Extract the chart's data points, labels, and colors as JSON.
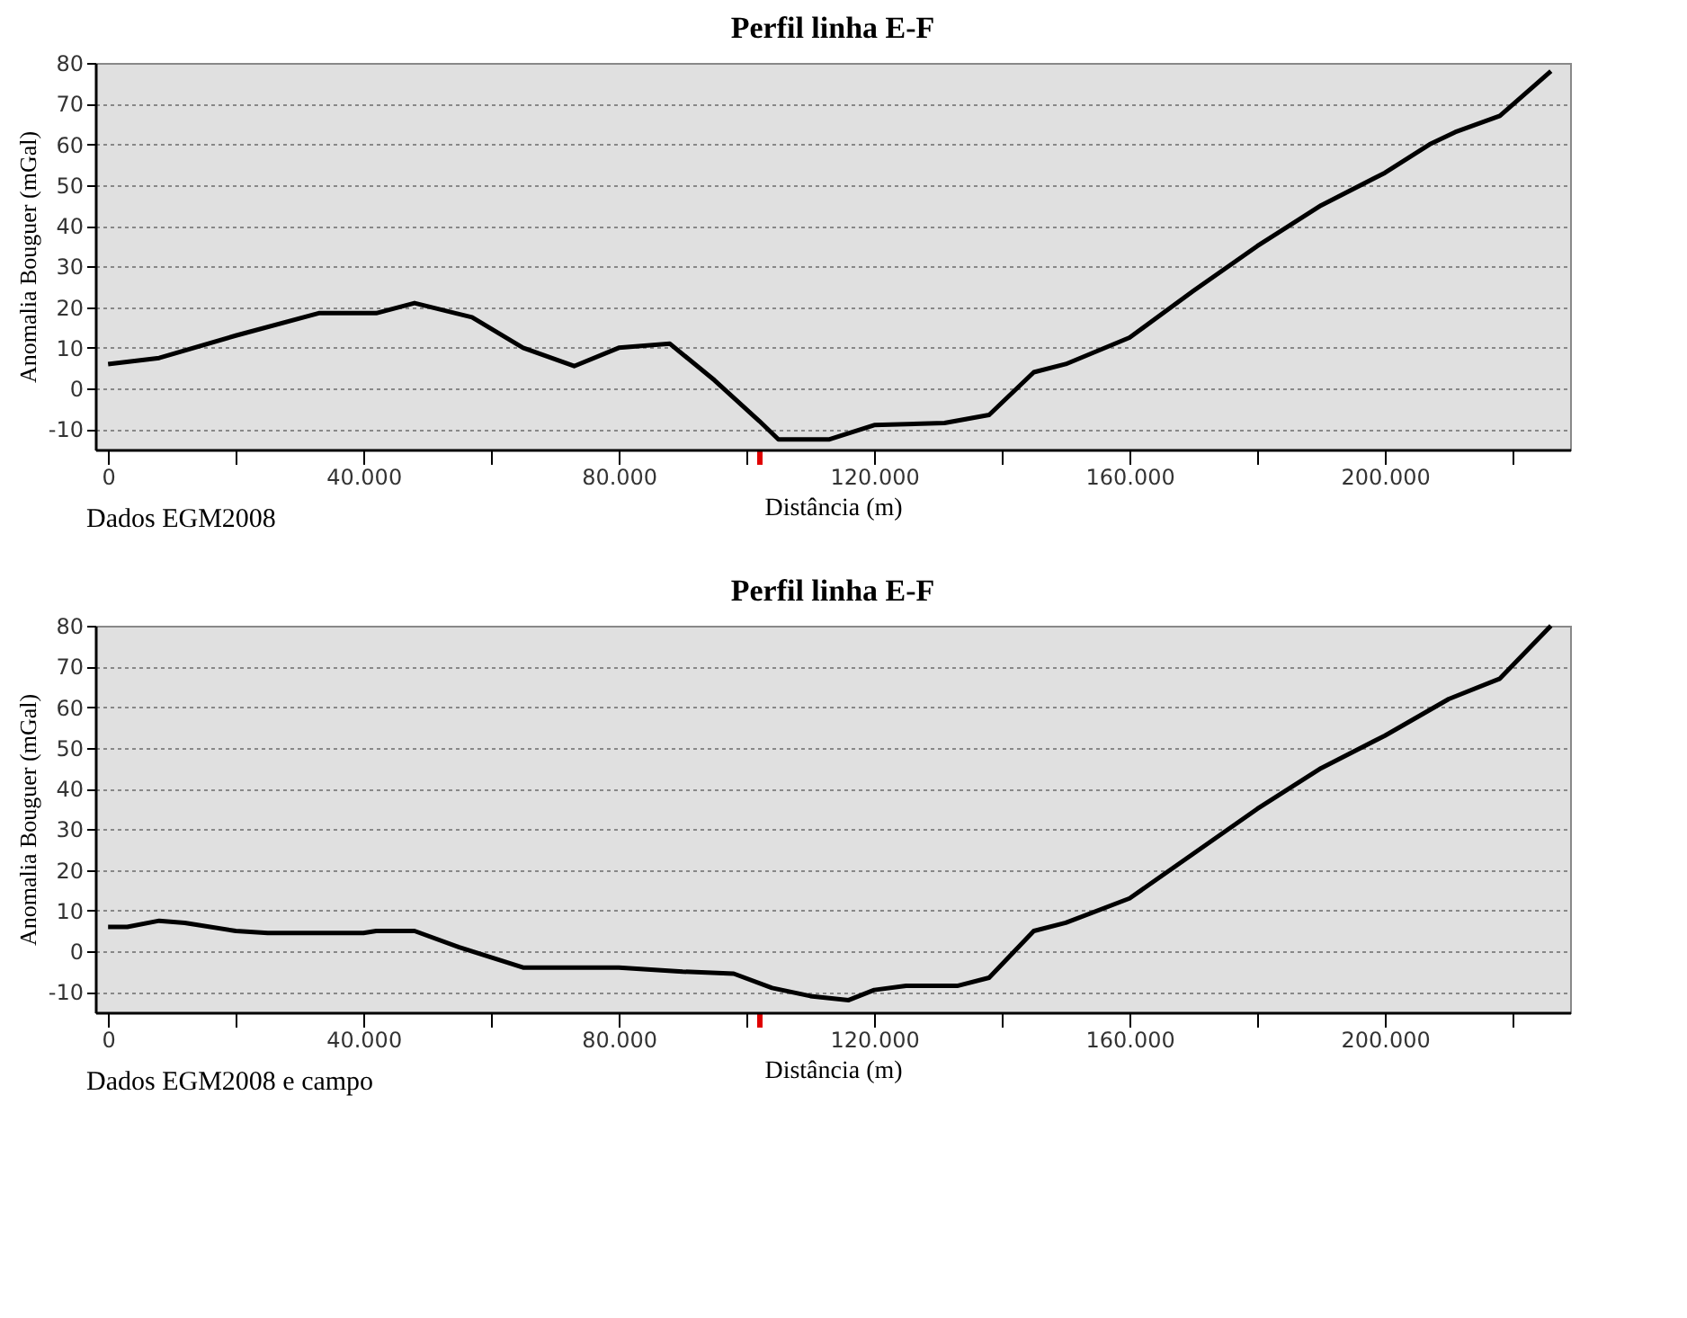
{
  "chart_data": [
    {
      "type": "line",
      "title": "Perfil linha E-F",
      "xlabel": "Distância (m)",
      "ylabel": "Anomalia Bouguer (mGal)",
      "annotations": [
        "Dados EGM2008"
      ],
      "series": [
        {
          "color": "#000000",
          "x": [
            0,
            8000,
            20000,
            33000,
            42000,
            48000,
            57000,
            65000,
            73000,
            80000,
            88000,
            95000,
            102000,
            105000,
            113000,
            120000,
            131000,
            138000,
            145000,
            150000,
            160000,
            170000,
            180000,
            190000,
            200000,
            207000,
            211000,
            218000,
            226000
          ],
          "values": [
            6,
            7.5,
            13,
            18.5,
            18.5,
            21,
            17.5,
            10,
            5.5,
            10,
            11,
            2,
            -8,
            -12.5,
            -12.5,
            -9,
            -8.5,
            -6.5,
            4,
            6,
            12.5,
            24,
            35,
            45,
            53,
            60,
            63,
            67,
            78
          ]
        }
      ],
      "xlim": [
        -2000,
        229000
      ],
      "ylim": [
        -15,
        80
      ],
      "xticks": [
        0,
        {
          "value": 20000,
          "label": null
        },
        {
          "value": 40000,
          "label": "40.000"
        },
        {
          "value": 60000,
          "label": null
        },
        {
          "value": 80000,
          "label": "80.000"
        },
        {
          "value": 100000,
          "label": null
        },
        {
          "value": 102000,
          "label": null
        },
        {
          "value": 120000,
          "label": "120.000"
        },
        {
          "value": 140000,
          "label": null
        },
        {
          "value": 160000,
          "label": "160.000"
        },
        {
          "value": 180000,
          "label": null
        },
        {
          "value": 200000,
          "label": "200.000"
        },
        {
          "value": 220000,
          "label": null
        }
      ],
      "yticks": [
        -10,
        0,
        10,
        20,
        30,
        40,
        50,
        60,
        70,
        80
      ],
      "grid": "y",
      "line_style": "solid"
    },
    {
      "type": "line",
      "title": "Perfil linha E-F",
      "xlabel": "Distância (m)",
      "ylabel": "Anomalia Bouguer (mGal)",
      "annotations": [
        "Dados EGM2008 e campo"
      ],
      "series": [
        {
          "color": "#000000",
          "x": [
            0,
            3000,
            8000,
            12000,
            20000,
            25000,
            40000,
            42000,
            48000,
            55000,
            65000,
            80000,
            90000,
            98000,
            104000,
            110000,
            116000,
            120000,
            125000,
            133000,
            138000,
            145000,
            150000,
            160000,
            170000,
            180000,
            190000,
            200000,
            210000,
            218000,
            226000
          ],
          "values": [
            6,
            6,
            7.5,
            7,
            5,
            4.5,
            4.5,
            5,
            5,
            1,
            -4,
            -4,
            -5,
            -5.5,
            -9,
            -11,
            -12,
            -9.5,
            -8.5,
            -8.5,
            -6.5,
            5,
            7,
            13,
            24,
            35,
            45,
            53,
            62,
            67,
            80
          ]
        }
      ],
      "xlim": [
        -2000,
        229000
      ],
      "ylim": [
        -15,
        80
      ],
      "xticks": [
        0,
        {
          "value": 20000,
          "label": null
        },
        {
          "value": 40000,
          "label": "40.000"
        },
        {
          "value": 60000,
          "label": null
        },
        {
          "value": 80000,
          "label": "80.000"
        },
        {
          "value": 100000,
          "label": null
        },
        {
          "value": 102000,
          "label": null
        },
        {
          "value": 120000,
          "label": "120.000"
        },
        {
          "value": 140000,
          "label": null
        },
        {
          "value": 160000,
          "label": "160.000"
        },
        {
          "value": 180000,
          "label": null
        },
        {
          "value": 200000,
          "label": "200.000"
        },
        {
          "value": 220000,
          "label": null
        }
      ],
      "yticks": [
        -10,
        0,
        10,
        20,
        30,
        40,
        50,
        60,
        70,
        80
      ],
      "grid": "y",
      "line_style": "solid"
    }
  ]
}
